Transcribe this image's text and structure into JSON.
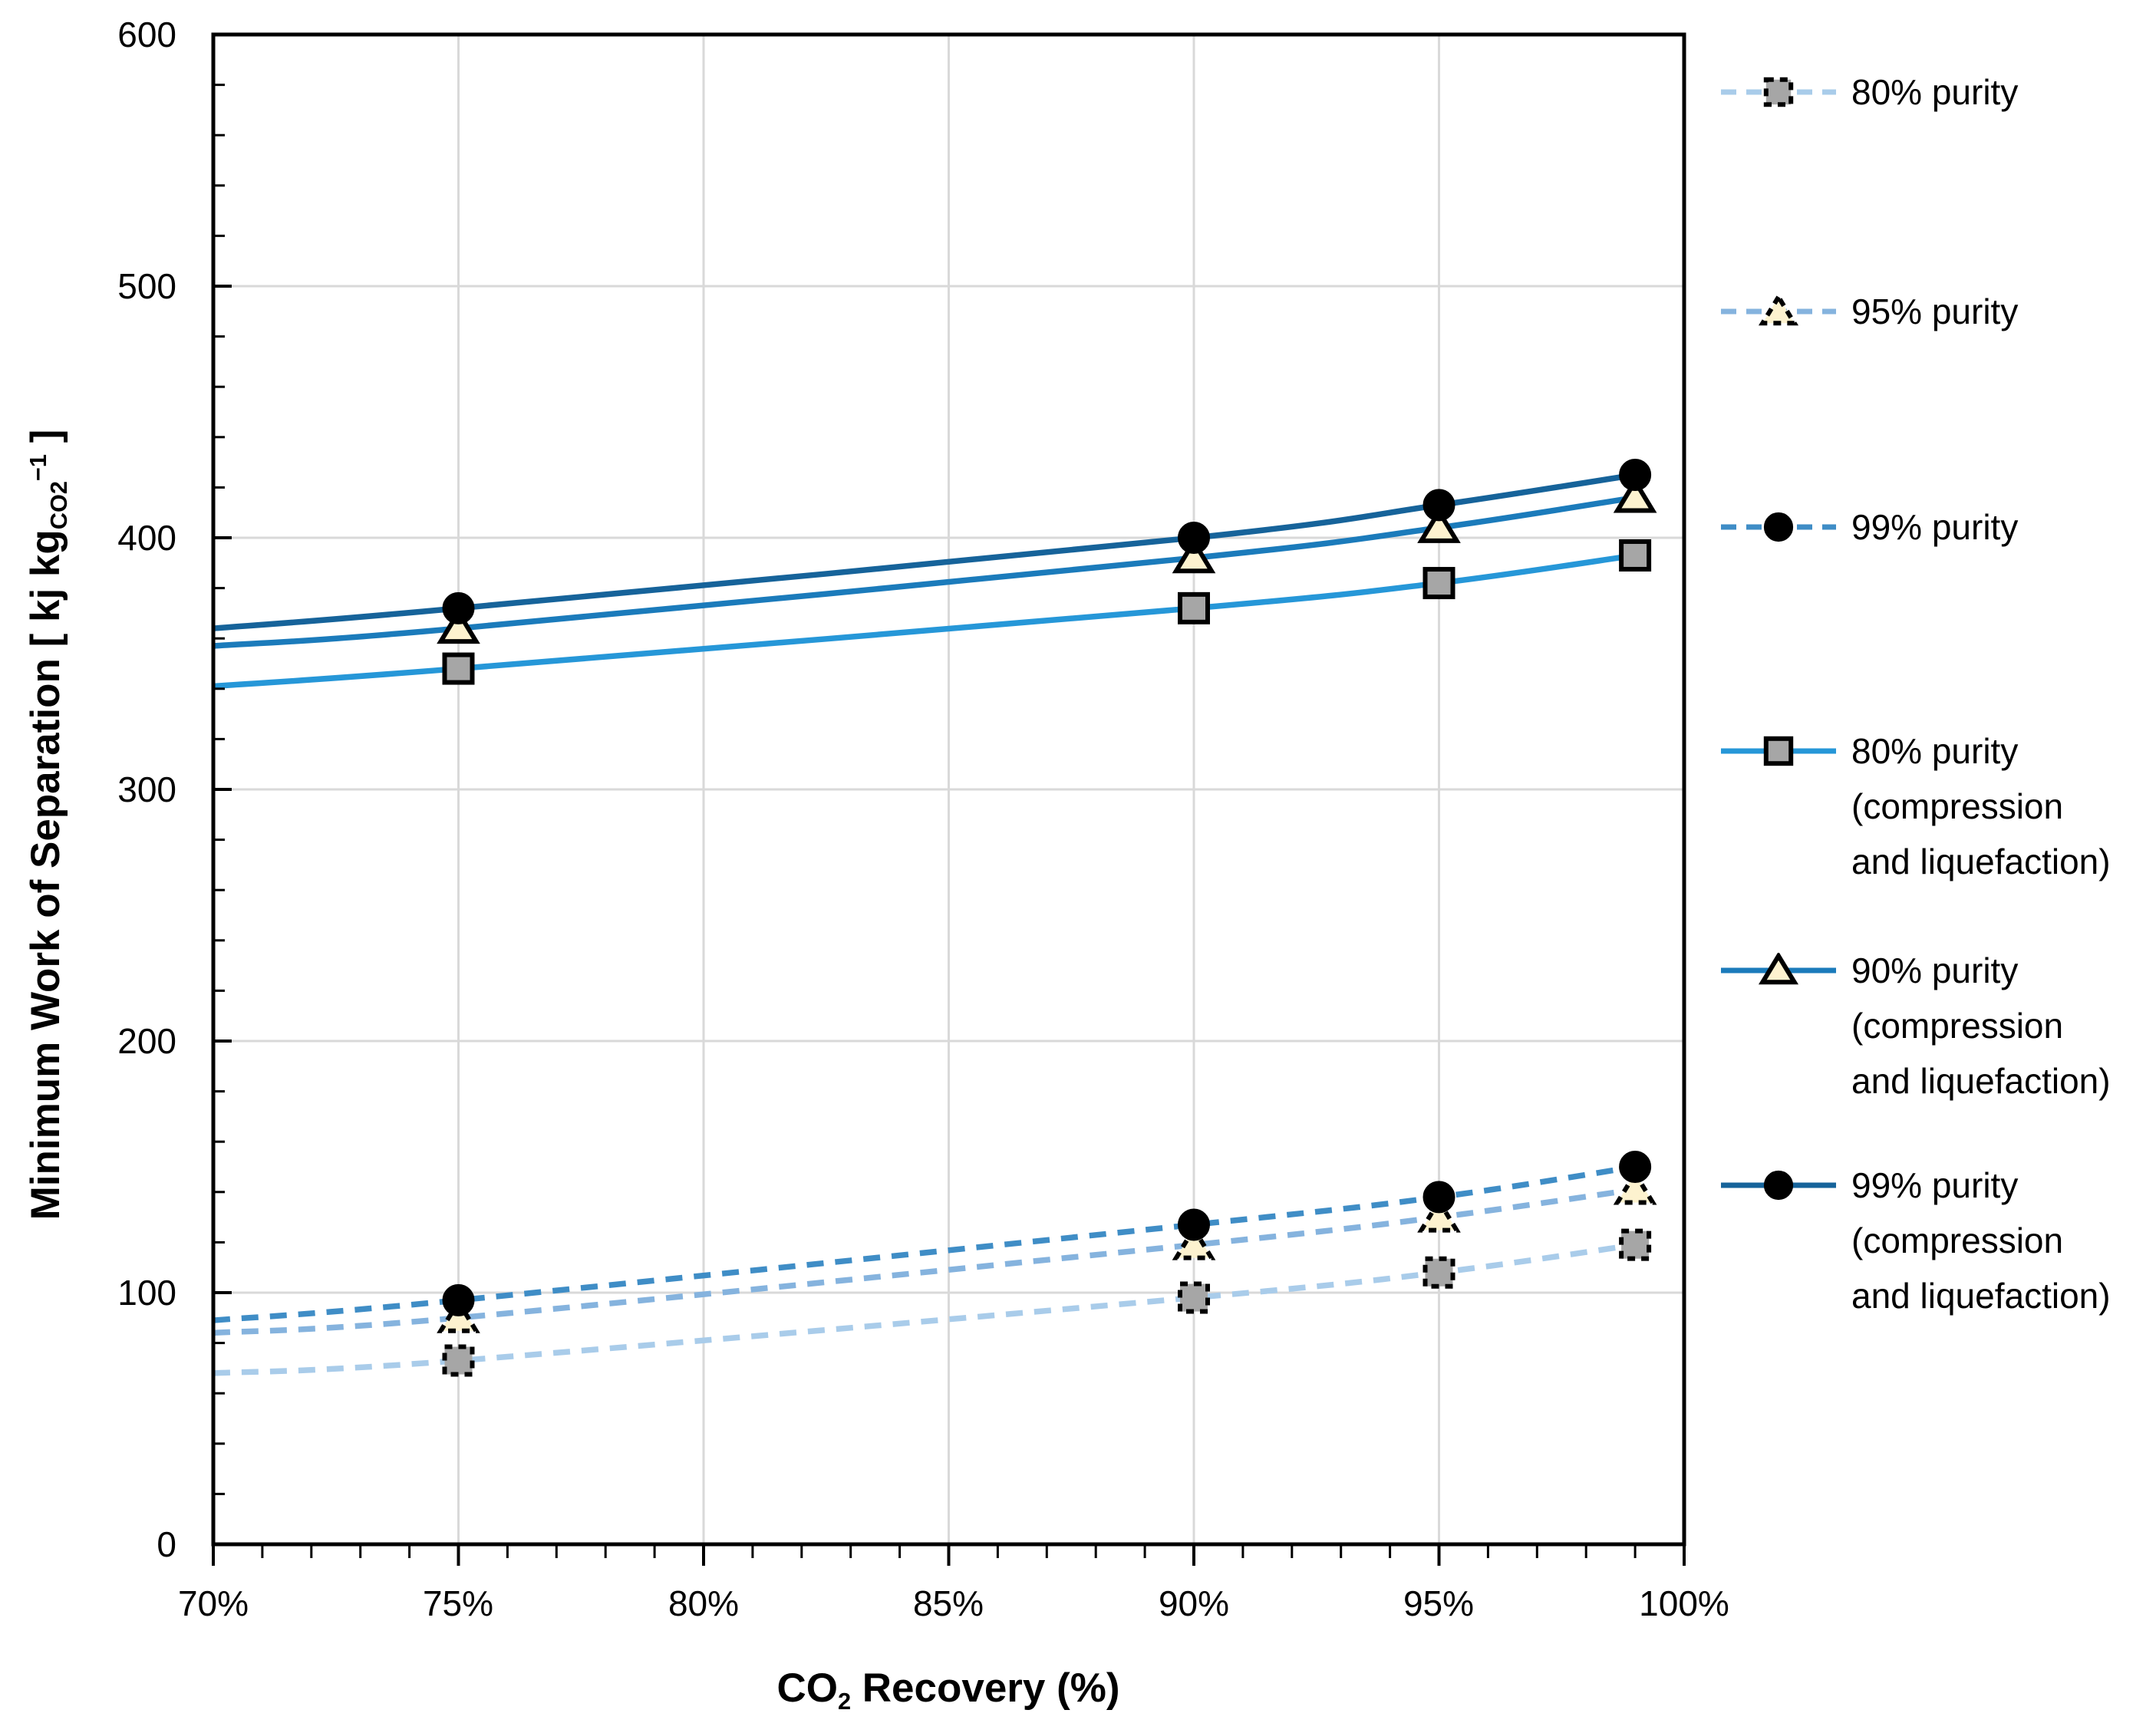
{
  "chart_data": {
    "type": "line",
    "title": "",
    "xlabel": {
      "text": "CO",
      "sub": "2",
      "end": " Recovery (%)"
    },
    "ylabel": {
      "text": "Minimum Work of Separation [ kj kg",
      "sub": "CO2",
      "sup": "−1",
      "end": " ]"
    },
    "xlim": [
      70,
      100
    ],
    "ylim": [
      0,
      600
    ],
    "x_ticks": [
      70,
      75,
      80,
      85,
      90,
      95,
      100
    ],
    "x_tick_labels": [
      "70%",
      "75%",
      "80%",
      "85%",
      "90%",
      "95%",
      "100%"
    ],
    "y_ticks": [
      0,
      100,
      200,
      300,
      400,
      500,
      600
    ],
    "y_tick_labels": [
      "0",
      "100",
      "200",
      "300",
      "400",
      "500",
      "600"
    ],
    "x_minor_step": 1,
    "y_minor_step": 20,
    "grid": true,
    "legend_position": "right",
    "marker_x": [
      75,
      90,
      95,
      99
    ],
    "series": [
      {
        "name": "80% purity",
        "line": "dashed",
        "color": "#A9CCEA",
        "marker": "square",
        "marker_fill": "#A6A6A6",
        "marker_border_style": "dashed",
        "x": [
          70,
          75,
          90,
          95,
          99
        ],
        "values": [
          68,
          73,
          98,
          108,
          119
        ],
        "legend_lines": [
          "80% purity"
        ]
      },
      {
        "name": "95% purity",
        "line": "dashed",
        "color": "#85B3DE",
        "marker": "triangle",
        "marker_fill": "#FDF2CF",
        "marker_border_style": "dashed",
        "x": [
          70,
          75,
          90,
          95,
          99
        ],
        "values": [
          84,
          90,
          119,
          130,
          141
        ],
        "legend_lines": [
          "95% purity"
        ]
      },
      {
        "name": "99% purity",
        "line": "dashed",
        "color": "#3F8DC6",
        "marker": "circle",
        "marker_fill": "#000000",
        "marker_border_style": "solid",
        "x": [
          70,
          75,
          90,
          95,
          99
        ],
        "values": [
          89,
          97,
          127,
          138,
          150
        ],
        "legend_lines": [
          "99% purity"
        ]
      },
      {
        "name": "80% purity (compression and liquefaction)",
        "line": "solid",
        "color": "#2697D8",
        "marker": "square",
        "marker_fill": "#A6A6A6",
        "marker_border_style": "solid",
        "x": [
          70,
          75,
          90,
          95,
          99
        ],
        "values": [
          341,
          348,
          372,
          382,
          393
        ],
        "legend_lines": [
          "80% purity",
          "(compression",
          "and liquefaction)"
        ]
      },
      {
        "name": "90% purity (compression and liquefaction)",
        "line": "solid",
        "color": "#1B7BBB",
        "marker": "triangle",
        "marker_fill": "#FDF2CF",
        "marker_border_style": "solid",
        "x": [
          70,
          75,
          90,
          95,
          99
        ],
        "values": [
          357,
          364,
          392,
          404,
          416
        ],
        "legend_lines": [
          "90% purity",
          "(compression",
          "and liquefaction)"
        ]
      },
      {
        "name": "99% purity (compression and liquefaction)",
        "line": "solid",
        "color": "#16639A",
        "marker": "circle",
        "marker_fill": "#000000",
        "marker_border_style": "solid",
        "x": [
          70,
          75,
          90,
          95,
          99
        ],
        "values": [
          364,
          372,
          400,
          413,
          425
        ],
        "legend_lines": [
          "99% purity",
          "(compression",
          "and liquefaction)"
        ]
      }
    ],
    "colors": {
      "grid": "#D9D9D9",
      "axis": "#000000",
      "text": "#000000",
      "background": "#FFFFFF"
    }
  }
}
